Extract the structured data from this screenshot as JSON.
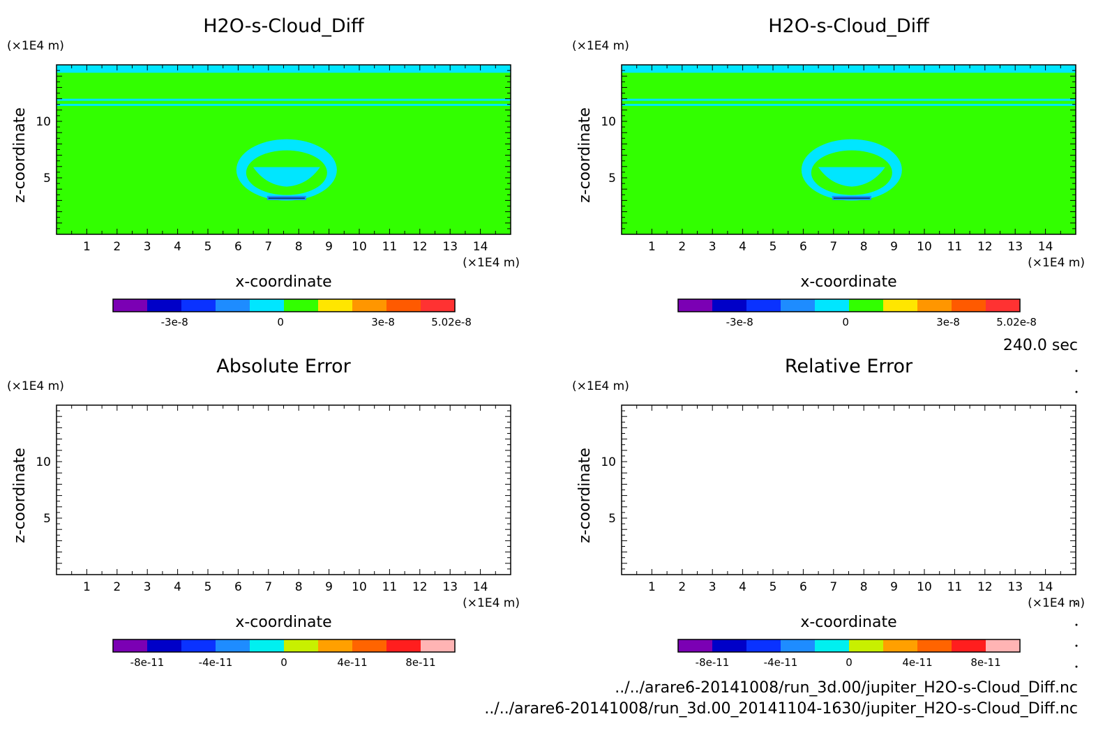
{
  "chart_data": [
    {
      "type": "heatmap",
      "title": "H2O-s-Cloud_Diff",
      "xlabel": "x-coordinate",
      "ylabel": "z-coordinate",
      "x_unit": "(×1E4 m)",
      "y_unit": "(×1E4 m)",
      "xlim": [
        0,
        15
      ],
      "ylim": [
        0,
        15
      ],
      "x_ticks": [
        "1",
        "2",
        "3",
        "4",
        "5",
        "6",
        "7",
        "8",
        "9",
        "10",
        "11",
        "12",
        "13",
        "14"
      ],
      "y_ticks": [
        "5",
        "10"
      ],
      "field": "H2O-s-Cloud_Diff (mostly 0, small anomaly near x=7.6, z=3-8, cyan band near top and at z≈11.5)",
      "colorbar": {
        "colors": [
          "#7b00b4",
          "#0000c8",
          "#0a32ff",
          "#1e8cff",
          "#00e6ff",
          "#32ff00",
          "#ffe600",
          "#ff9600",
          "#ff5a00",
          "#ff3232"
        ],
        "tick_labels": [
          "-3e-8",
          "0",
          "3e-8",
          "5.02e-8"
        ]
      }
    },
    {
      "type": "heatmap",
      "title": "H2O-s-Cloud_Diff",
      "xlabel": "x-coordinate",
      "ylabel": "z-coordinate",
      "x_unit": "(×1E4 m)",
      "y_unit": "(×1E4 m)",
      "xlim": [
        0,
        15
      ],
      "ylim": [
        0,
        15
      ],
      "x_ticks": [
        "1",
        "2",
        "3",
        "4",
        "5",
        "6",
        "7",
        "8",
        "9",
        "10",
        "11",
        "12",
        "13",
        "14"
      ],
      "y_ticks": [
        "5",
        "10"
      ],
      "colorbar": {
        "colors": [
          "#7b00b4",
          "#0000c8",
          "#0a32ff",
          "#1e8cff",
          "#00e6ff",
          "#32ff00",
          "#ffe600",
          "#ff9600",
          "#ff5a00",
          "#ff3232"
        ],
        "tick_labels": [
          "-3e-8",
          "0",
          "3e-8",
          "5.02e-8"
        ]
      }
    },
    {
      "type": "heatmap",
      "title": "Absolute Error",
      "xlabel": "x-coordinate",
      "ylabel": "z-coordinate",
      "x_unit": "(×1E4 m)",
      "y_unit": "(×1E4 m)",
      "xlim": [
        0,
        15
      ],
      "ylim": [
        0,
        15
      ],
      "x_ticks": [
        "1",
        "2",
        "3",
        "4",
        "5",
        "6",
        "7",
        "8",
        "9",
        "10",
        "11",
        "12",
        "13",
        "14"
      ],
      "y_ticks": [
        "5",
        "10"
      ],
      "colorbar": {
        "colors": [
          "#7b00b4",
          "#0000c8",
          "#0a32ff",
          "#1e8cff",
          "#00f0f0",
          "#c8f000",
          "#ffa000",
          "#ff6400",
          "#ff1e1e",
          "#ffb4b4"
        ],
        "tick_labels": [
          "-8e-11",
          "-4e-11",
          "0",
          "4e-11",
          "8e-11"
        ]
      }
    },
    {
      "type": "heatmap",
      "title": "Relative Error",
      "xlabel": "x-coordinate",
      "ylabel": "z-coordinate",
      "x_unit": "(×1E4 m)",
      "y_unit": "(×1E4 m)",
      "xlim": [
        0,
        15
      ],
      "ylim": [
        0,
        15
      ],
      "x_ticks": [
        "1",
        "2",
        "3",
        "4",
        "5",
        "6",
        "7",
        "8",
        "9",
        "10",
        "11",
        "12",
        "13",
        "14"
      ],
      "y_ticks": [
        "5",
        "10"
      ],
      "colorbar": {
        "colors": [
          "#7b00b4",
          "#0000c8",
          "#0a32ff",
          "#1e8cff",
          "#00f0f0",
          "#c8f000",
          "#ffa000",
          "#ff6400",
          "#ff1e1e",
          "#ffb4b4"
        ],
        "tick_labels": [
          "-8e-11",
          "-4e-11",
          "0",
          "4e-11",
          "8e-11"
        ]
      }
    }
  ],
  "time_label": "240.0 sec",
  "files": [
    "../../arare6-20141008/run_3d.00/jupiter_H2O-s-Cloud_Diff.nc",
    "../../arare6-20141008/run_3d.00_20141104-1630/jupiter_H2O-s-Cloud_Diff.nc"
  ],
  "colors": {
    "field_green": "#32ff00",
    "cyan": "#00e6ff"
  }
}
